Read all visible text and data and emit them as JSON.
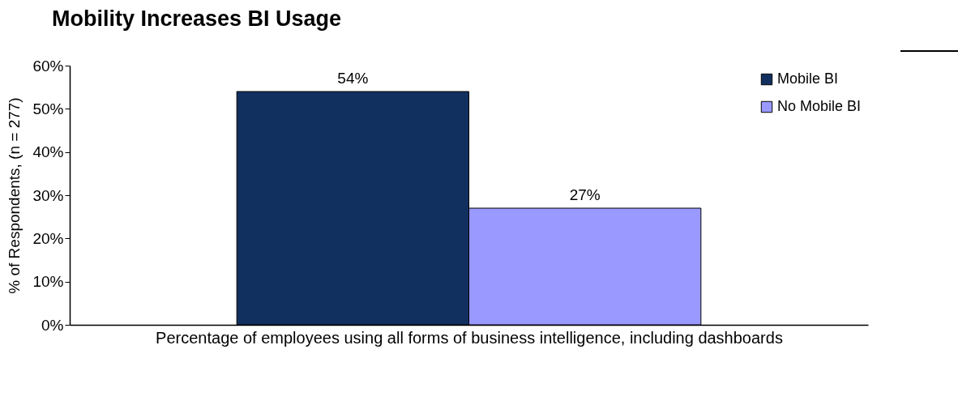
{
  "chart_data": {
    "type": "bar",
    "title": "Mobility Increases BI Usage",
    "xlabel": "Percentage of employees using all forms of business intelligence, including dashboards",
    "ylabel": "% of Respondents, (n = 277)",
    "categories": [
      null
    ],
    "series": [
      {
        "name": "Mobile BI",
        "color": "#12305f",
        "values": [
          54
        ],
        "value_labels": [
          "54%"
        ]
      },
      {
        "name": "No Mobile BI",
        "color": "#9999ff",
        "values": [
          27
        ],
        "value_labels": [
          "27%"
        ]
      }
    ],
    "ylim": [
      0,
      60
    ],
    "yticks": [
      {
        "value": 0,
        "label": "0%"
      },
      {
        "value": 10,
        "label": "10%"
      },
      {
        "value": 20,
        "label": "20%"
      },
      {
        "value": 30,
        "label": "30%"
      },
      {
        "value": 40,
        "label": "40%"
      },
      {
        "value": 50,
        "label": "50%"
      },
      {
        "value": 60,
        "label": "60%"
      }
    ],
    "grid": false,
    "legend": "top right"
  }
}
